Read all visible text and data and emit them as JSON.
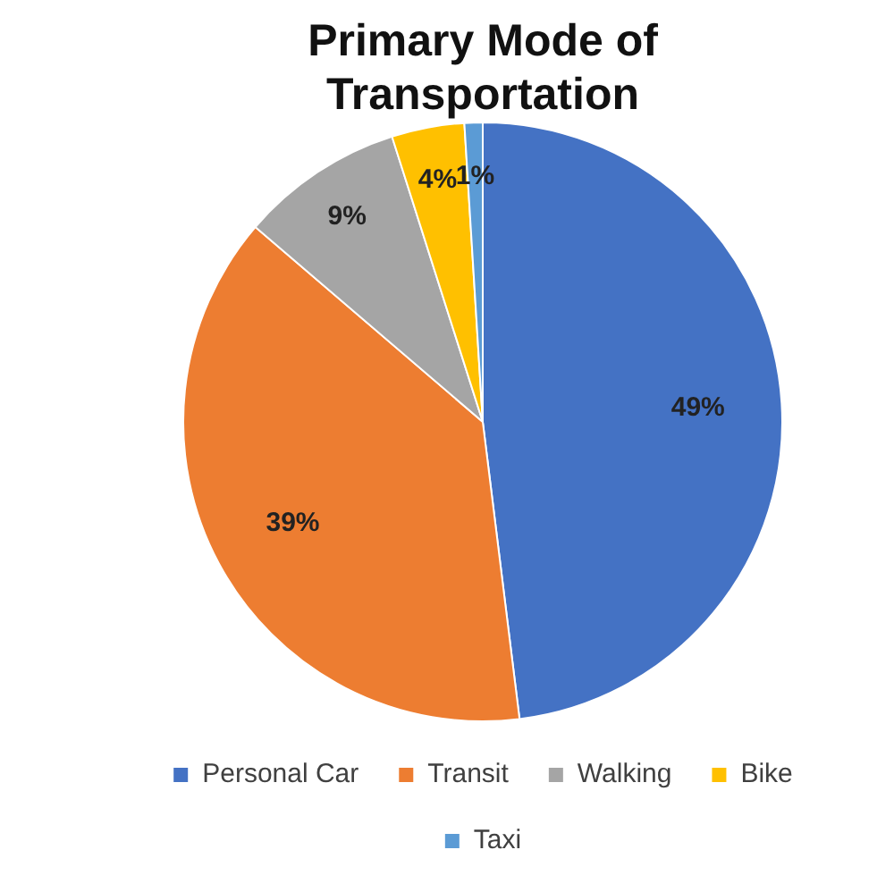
{
  "chart_data": {
    "type": "pie",
    "title": "Primary Mode of Transportation",
    "categories": [
      "Personal Car",
      "Transit",
      "Walking",
      "Bike",
      "Taxi"
    ],
    "values": [
      49,
      39,
      9,
      4,
      1
    ],
    "colors": [
      "#4472c4",
      "#ed7d31",
      "#a5a5a5",
      "#ffc000",
      "#5b9bd5"
    ],
    "value_labels": [
      "49%",
      "39%",
      "9%",
      "4%",
      "1%"
    ],
    "legend": "bottom"
  }
}
